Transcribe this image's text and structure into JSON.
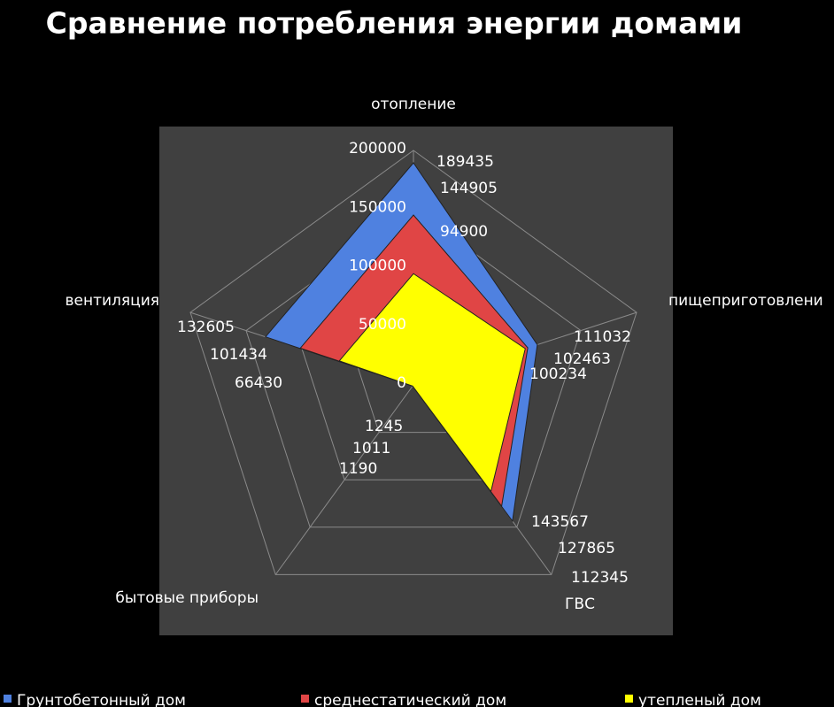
{
  "chart_data": {
    "type": "radar",
    "title": "Сравнение потребления энергии домами",
    "categories": [
      "отопление",
      "пищеприготовлени",
      "ГВС",
      "бытовые приборы",
      "вентиляция"
    ],
    "series": [
      {
        "name": "Грунтобетонный дом",
        "color": "#4f81e0",
        "values": [
          189435,
          111032,
          143567,
          1245,
          132605
        ]
      },
      {
        "name": "среднестатический дом",
        "color": "#e04545",
        "values": [
          144905,
          102463,
          127865,
          1011,
          101434
        ]
      },
      {
        "name": "утепленый дом",
        "color": "#ffff00",
        "values": [
          94900,
          100234,
          112345,
          1190,
          66430
        ]
      }
    ],
    "ylim": [
      0,
      200000
    ],
    "yticks": [
      0,
      50000,
      100000,
      150000,
      200000
    ],
    "grid": true,
    "legend": "bottom"
  }
}
